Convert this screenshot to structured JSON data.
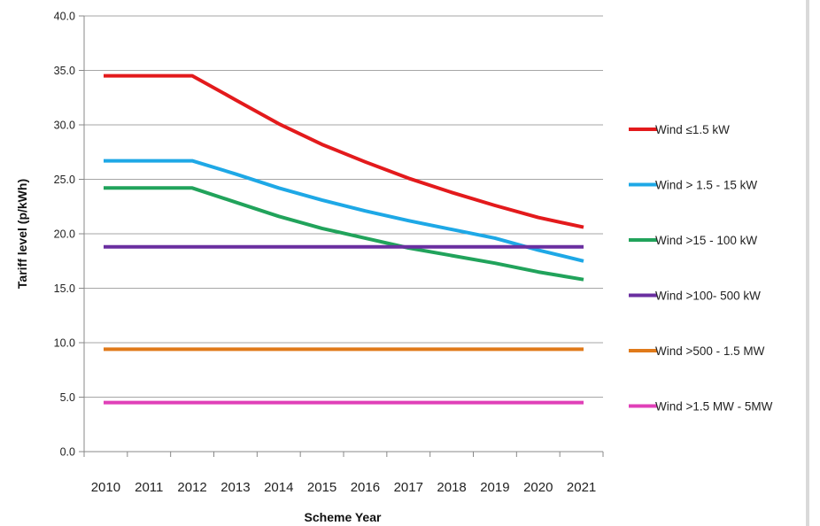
{
  "chart_data": {
    "type": "line",
    "title": "",
    "xlabel": "Scheme Year",
    "ylabel": "Tariff level (p/kWh)",
    "x": [
      "2010",
      "2011",
      "2012",
      "2013",
      "2014",
      "2015",
      "2016",
      "2017",
      "2018",
      "2019",
      "2020",
      "2021"
    ],
    "ylim": [
      0,
      40
    ],
    "yticks": [
      "0.0",
      "5.0",
      "10.0",
      "15.0",
      "20.0",
      "25.0",
      "30.0",
      "35.0",
      "40.0"
    ],
    "grid": true,
    "legend_position": "right",
    "series": [
      {
        "name": "Wind ≤1.5 kW",
        "color": "#e31a1c",
        "values": [
          34.5,
          34.5,
          34.5,
          32.3,
          30.1,
          28.2,
          26.6,
          25.1,
          23.8,
          22.6,
          21.5,
          20.6
        ]
      },
      {
        "name": "Wind > 1.5 - 15 kW",
        "color": "#1ea8e6",
        "values": [
          26.7,
          26.7,
          26.7,
          25.5,
          24.2,
          23.1,
          22.1,
          21.2,
          20.4,
          19.6,
          18.5,
          17.5
        ]
      },
      {
        "name": "Wind >15 - 100 kW",
        "color": "#21a35b",
        "values": [
          24.2,
          24.2,
          24.2,
          22.9,
          21.6,
          20.5,
          19.6,
          18.7,
          18.0,
          17.3,
          16.5,
          15.8
        ]
      },
      {
        "name": "Wind >100- 500 kW",
        "color": "#6a2fa0",
        "values": [
          18.8,
          18.8,
          18.8,
          18.8,
          18.8,
          18.8,
          18.8,
          18.8,
          18.8,
          18.8,
          18.8,
          18.8
        ]
      },
      {
        "name": "Wind >500 - 1.5 MW",
        "color": "#e07a1a",
        "values": [
          9.4,
          9.4,
          9.4,
          9.4,
          9.4,
          9.4,
          9.4,
          9.4,
          9.4,
          9.4,
          9.4,
          9.4
        ]
      },
      {
        "name": "Wind >1.5 MW - 5MW",
        "color": "#e040b8",
        "values": [
          4.5,
          4.5,
          4.5,
          4.5,
          4.5,
          4.5,
          4.5,
          4.5,
          4.5,
          4.5,
          4.5,
          4.5
        ]
      }
    ]
  }
}
